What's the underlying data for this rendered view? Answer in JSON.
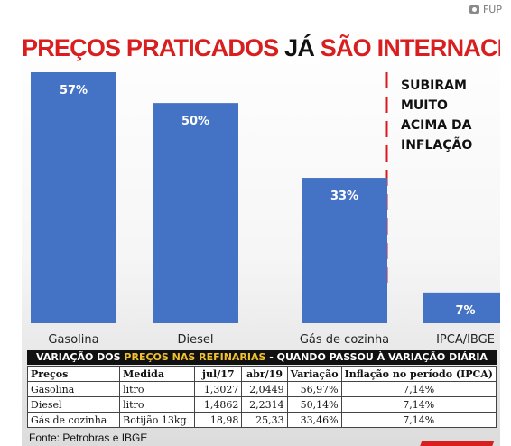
{
  "credit": {
    "text": "FUP",
    "icon": "camera-icon"
  },
  "headline": {
    "part1": "PREÇOS PRATICADOS ",
    "part2": "JÁ",
    "part3": " SÃO INTERNACIONAIS"
  },
  "note": [
    "SUBIRAM",
    "MUITO",
    "ACIMA DA",
    "INFLAÇÃO"
  ],
  "colors": {
    "bar": "#4472c4",
    "accent": "#d81e1e",
    "table_header_bg": "#111111",
    "table_highlight": "#f2c12e"
  },
  "chart_data": {
    "type": "bar",
    "title": "PREÇOS PRATICADOS JÁ SÃO INTERNACIONAIS",
    "categories": [
      "Gasolina",
      "Diesel",
      "Gás de cozinha",
      "IPCA/IBGE"
    ],
    "values": [
      57,
      50,
      33,
      7
    ],
    "value_labels": [
      "57%",
      "50%",
      "33%",
      "7%"
    ],
    "unit": "%",
    "ylim": [
      0,
      57
    ],
    "grid": false,
    "axes_visible": false
  },
  "table": {
    "title_part1": "VARIAÇÃO DOS ",
    "title_highlight": "PREÇOS NAS REFINARIAS",
    "title_part2": " - QUANDO PASSOU À VARIAÇÃO DIÁRIA",
    "headers": [
      "Preços",
      "Medida",
      "jul/17",
      "abr/19",
      "Variação",
      "Inflação no período (IPCA)"
    ],
    "rows": [
      [
        "Gasolina",
        "litro",
        "1,3027",
        "2,0449",
        "56,97%",
        "7,14%"
      ],
      [
        "Diesel",
        "litro",
        "1,4862",
        "2,2314",
        "50,14%",
        "7,14%"
      ],
      [
        "Gás de cozinha",
        "Botijão 13kg",
        "18,98",
        "25,33",
        "33,46%",
        "7,14%"
      ]
    ]
  },
  "source": "Fonte: Petrobras e IBGE"
}
